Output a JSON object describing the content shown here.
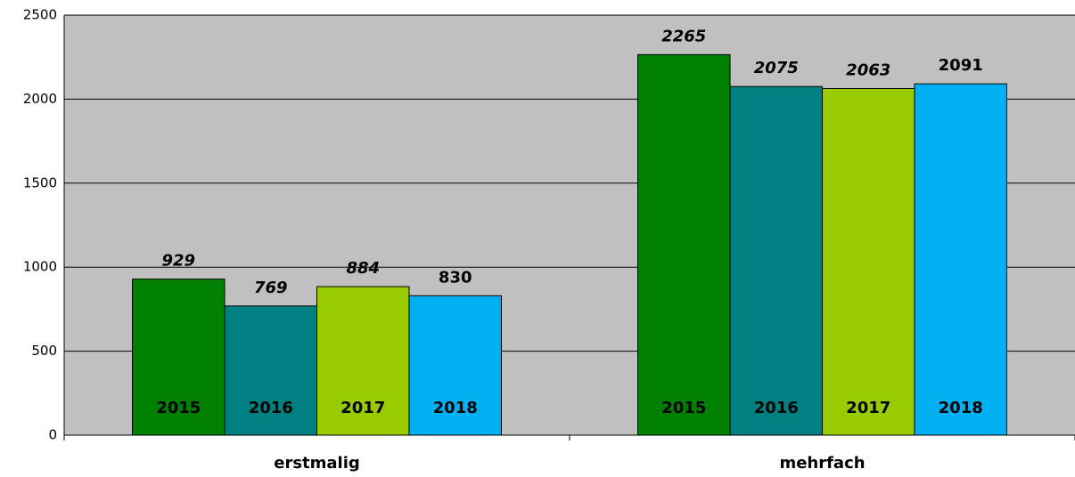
{
  "chart_data": {
    "type": "bar",
    "categories": [
      "erstmalig",
      "mehrfach"
    ],
    "series": [
      {
        "name": "2015",
        "color": "#008000",
        "values": [
          929,
          2265
        ]
      },
      {
        "name": "2016",
        "color": "#008080",
        "values": [
          769,
          2075
        ]
      },
      {
        "name": "2017",
        "color": "#99cc00",
        "values": [
          884,
          2063
        ]
      },
      {
        "name": "2018",
        "color": "#00b0f0",
        "values": [
          830,
          2091
        ]
      }
    ],
    "ylim": [
      0,
      2500
    ],
    "yticks": [
      0,
      500,
      1000,
      1500,
      2000,
      2500
    ],
    "grid": true,
    "background": "#c0c0c0"
  }
}
